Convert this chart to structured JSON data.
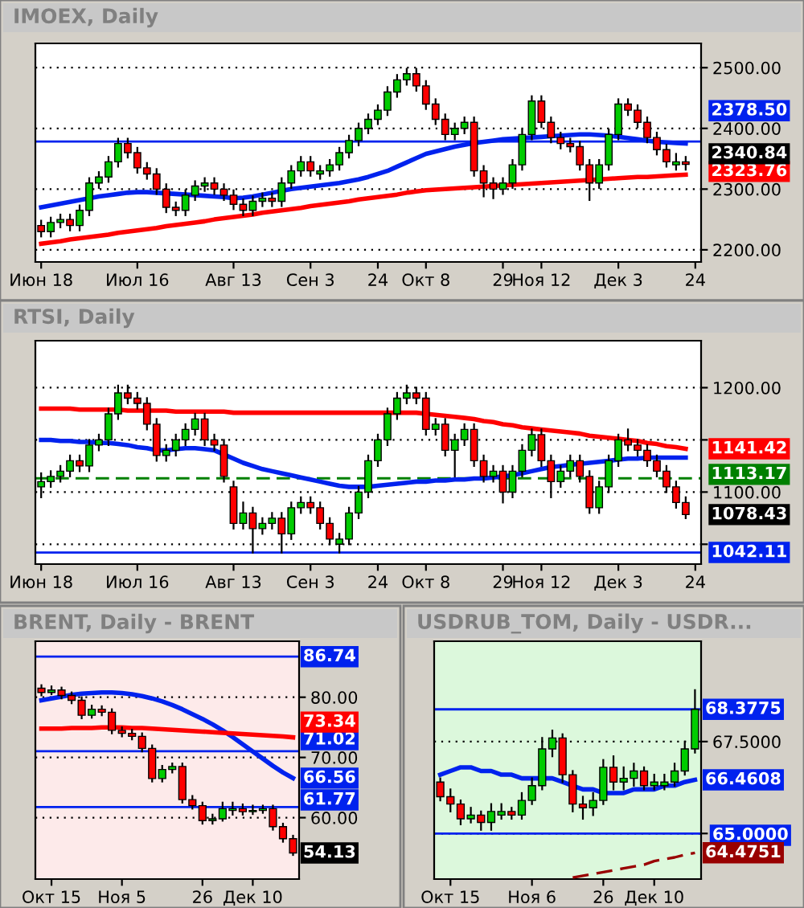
{
  "chart_data": [
    {
      "type": "candlestick",
      "title": "IMOEX, Daily",
      "grid": "y",
      "categories": [
        "Июн 18",
        null,
        null,
        null,
        null,
        null,
        null,
        null,
        null,
        null,
        "Июл 16",
        null,
        null,
        null,
        null,
        null,
        null,
        null,
        null,
        null,
        "Авг 13",
        null,
        null,
        null,
        null,
        null,
        null,
        null,
        "Сен 3",
        null,
        null,
        null,
        null,
        null,
        null,
        "24",
        null,
        null,
        null,
        null,
        "Окт 8",
        null,
        null,
        null,
        null,
        null,
        null,
        null,
        "29",
        null,
        null,
        null,
        "Ноя 12",
        null,
        null,
        null,
        null,
        null,
        null,
        null,
        "Дек 3",
        null,
        null,
        null,
        null,
        null,
        null,
        null,
        "24"
      ],
      "ohlc": [
        [
          2240,
          2248,
          2222,
          2230
        ],
        [
          2230,
          2253,
          2222,
          2245
        ],
        [
          2245,
          2258,
          2237,
          2250
        ],
        [
          2250,
          2258,
          2232,
          2240
        ],
        [
          2240,
          2273,
          2232,
          2265
        ],
        [
          2265,
          2318,
          2257,
          2310
        ],
        [
          2310,
          2328,
          2302,
          2320
        ],
        [
          2320,
          2353,
          2312,
          2345
        ],
        [
          2345,
          2383,
          2337,
          2375
        ],
        [
          2375,
          2383,
          2352,
          2360
        ],
        [
          2360,
          2368,
          2327,
          2335
        ],
        [
          2335,
          2343,
          2317,
          2325
        ],
        [
          2325,
          2333,
          2292,
          2300
        ],
        [
          2300,
          2308,
          2262,
          2270
        ],
        [
          2270,
          2278,
          2257,
          2265
        ],
        [
          2265,
          2298,
          2257,
          2290
        ],
        [
          2290,
          2313,
          2282,
          2305
        ],
        [
          2305,
          2318,
          2297,
          2310
        ],
        [
          2310,
          2318,
          2292,
          2300
        ],
        [
          2300,
          2308,
          2282,
          2290
        ],
        [
          2290,
          2298,
          2267,
          2275
        ],
        [
          2275,
          2283,
          2257,
          2265
        ],
        [
          2265,
          2288,
          2257,
          2280
        ],
        [
          2280,
          2293,
          2272,
          2285
        ],
        [
          2285,
          2293,
          2272,
          2280
        ],
        [
          2280,
          2318,
          2272,
          2310
        ],
        [
          2310,
          2338,
          2302,
          2330
        ],
        [
          2330,
          2353,
          2322,
          2345
        ],
        [
          2345,
          2353,
          2322,
          2330
        ],
        [
          2325,
          2338,
          2317,
          2330
        ],
        [
          2330,
          2348,
          2322,
          2340
        ],
        [
          2340,
          2368,
          2332,
          2360
        ],
        [
          2360,
          2388,
          2352,
          2380
        ],
        [
          2380,
          2408,
          2372,
          2400
        ],
        [
          2400,
          2423,
          2392,
          2415
        ],
        [
          2415,
          2438,
          2407,
          2430
        ],
        [
          2430,
          2468,
          2422,
          2460
        ],
        [
          2460,
          2488,
          2452,
          2480
        ],
        [
          2480,
          2498,
          2472,
          2490
        ],
        [
          2490,
          2498,
          2462,
          2470
        ],
        [
          2470,
          2478,
          2432,
          2440
        ],
        [
          2440,
          2448,
          2407,
          2415
        ],
        [
          2415,
          2423,
          2382,
          2390
        ],
        [
          2390,
          2408,
          2382,
          2400
        ],
        [
          2400,
          2418,
          2392,
          2410
        ],
        [
          2410,
          2418,
          2322,
          2330
        ],
        [
          2330,
          2338,
          2288,
          2310
        ],
        [
          2310,
          2318,
          2285,
          2300
        ],
        [
          2300,
          2318,
          2292,
          2310
        ],
        [
          2310,
          2348,
          2302,
          2340
        ],
        [
          2340,
          2398,
          2332,
          2390
        ],
        [
          2390,
          2453,
          2382,
          2445
        ],
        [
          2445,
          2453,
          2402,
          2410
        ],
        [
          2410,
          2418,
          2377,
          2385
        ],
        [
          2385,
          2393,
          2367,
          2375
        ],
        [
          2375,
          2383,
          2362,
          2370
        ],
        [
          2370,
          2378,
          2332,
          2340
        ],
        [
          2340,
          2348,
          2282,
          2310
        ],
        [
          2310,
          2348,
          2302,
          2340
        ],
        [
          2340,
          2398,
          2332,
          2390
        ],
        [
          2390,
          2448,
          2382,
          2440
        ],
        [
          2440,
          2448,
          2422,
          2430
        ],
        [
          2430,
          2438,
          2402,
          2410
        ],
        [
          2410,
          2418,
          2377,
          2385
        ],
        [
          2385,
          2393,
          2357,
          2365
        ],
        [
          2365,
          2373,
          2337,
          2345
        ],
        [
          2340,
          2358,
          2332,
          2345
        ],
        [
          2345,
          2353,
          2332,
          2340.84
        ],
        null
      ],
      "series": [
        {
          "type": "line",
          "color": "#0022ee",
          "values": [
            2270,
            2273,
            2276,
            2279,
            2282,
            2285,
            2288,
            2290,
            2292,
            2294,
            2295,
            2295,
            2294,
            2293,
            2292,
            2291,
            2290,
            2289,
            2288,
            2287,
            2285,
            2286,
            2288,
            2291,
            2294,
            2297,
            2300,
            2302,
            2304,
            2306,
            2308,
            2310,
            2313,
            2316,
            2320,
            2325,
            2330,
            2337,
            2344,
            2351,
            2358,
            2362,
            2366,
            2370,
            2373,
            2376,
            2378,
            2380,
            2382,
            2383,
            2384,
            2385,
            2386,
            2387,
            2388,
            2389,
            2390,
            2390,
            2389,
            2388,
            2386,
            2384,
            2382,
            2380,
            2378,
            2377,
            2376,
            2375,
            null
          ]
        },
        {
          "type": "line",
          "color": "#ff0000",
          "values": [
            2210,
            2212,
            2214,
            2217,
            2219,
            2221,
            2223,
            2225,
            2228,
            2230,
            2232,
            2234,
            2236,
            2239,
            2241,
            2243,
            2245,
            2247,
            2250,
            2252,
            2254,
            2256,
            2258,
            2261,
            2263,
            2265,
            2267,
            2269,
            2272,
            2274,
            2276,
            2278,
            2280,
            2283,
            2285,
            2287,
            2289,
            2291,
            2294,
            2296,
            2298,
            2299,
            2300,
            2301,
            2302,
            2303,
            2304,
            2305,
            2306,
            2307,
            2308,
            2309,
            2310,
            2311,
            2312,
            2313,
            2314,
            2315,
            2316,
            2317,
            2318,
            2319,
            2320,
            2320,
            2321,
            2322,
            2323,
            2323.76,
            null
          ],
          "value_labels": [
            null,
            null,
            null,
            null,
            null,
            null,
            null,
            null,
            null,
            null,
            null,
            null,
            null,
            null,
            null,
            null,
            null,
            null,
            null,
            null,
            null,
            null,
            null,
            null,
            null,
            null,
            null,
            null,
            null,
            null,
            null,
            null,
            null,
            null,
            null,
            null,
            null,
            null,
            null,
            null,
            null,
            null,
            null,
            null,
            null,
            null,
            null,
            null,
            null,
            null,
            null,
            null,
            null,
            null,
            null,
            null,
            null,
            null,
            null,
            null,
            null,
            null,
            null,
            null,
            null,
            null,
            null,
            "2323.76",
            null
          ]
        }
      ],
      "ylim": [
        2180,
        2540
      ],
      "yticks": [
        {
          "value": 2200,
          "label": "2200.00"
        },
        {
          "value": 2300,
          "label": "2300.00"
        },
        {
          "value": 2400,
          "label": "2400.00"
        },
        {
          "value": 2500,
          "label": "2500.00"
        }
      ],
      "ref_lines": [
        {
          "axis": "y",
          "value": 2378.5,
          "label": "2378.50",
          "color": "#0022ee"
        }
      ],
      "annotations": [
        "2340.84"
      ]
    },
    {
      "type": "candlestick",
      "title": "RTSI, Daily",
      "grid": "y",
      "categories": [
        "Июн 18",
        null,
        null,
        null,
        null,
        null,
        null,
        null,
        null,
        null,
        "Июл 16",
        null,
        null,
        null,
        null,
        null,
        null,
        null,
        null,
        null,
        "Авг 13",
        null,
        null,
        null,
        null,
        null,
        null,
        null,
        "Сен 3",
        null,
        null,
        null,
        null,
        null,
        null,
        "24",
        null,
        null,
        null,
        null,
        "Окт 8",
        null,
        null,
        null,
        null,
        null,
        null,
        null,
        "29",
        null,
        null,
        null,
        "Ноя 12",
        null,
        null,
        null,
        null,
        null,
        null,
        null,
        "Дек 3",
        null,
        null,
        null,
        null,
        null,
        null,
        null,
        "24"
      ],
      "ohlc": [
        [
          1105,
          1118,
          1095,
          1110
        ],
        [
          1110,
          1120,
          1105,
          1115
        ],
        [
          1115,
          1125,
          1110,
          1120
        ],
        [
          1120,
          1135,
          1115,
          1130
        ],
        [
          1130,
          1135,
          1120,
          1125
        ],
        [
          1125,
          1150,
          1120,
          1145
        ],
        [
          1145,
          1155,
          1140,
          1150
        ],
        [
          1150,
          1180,
          1145,
          1175
        ],
        [
          1175,
          1202,
          1170,
          1195
        ],
        [
          1195,
          1202,
          1185,
          1190
        ],
        [
          1190,
          1195,
          1180,
          1185
        ],
        [
          1185,
          1190,
          1160,
          1165
        ],
        [
          1165,
          1170,
          1130,
          1135
        ],
        [
          1135,
          1145,
          1130,
          1140
        ],
        [
          1140,
          1155,
          1135,
          1150
        ],
        [
          1150,
          1165,
          1145,
          1160
        ],
        [
          1160,
          1175,
          1155,
          1170
        ],
        [
          1170,
          1175,
          1145,
          1150
        ],
        [
          1150,
          1155,
          1140,
          1145
        ],
        [
          1145,
          1150,
          1110,
          1115
        ],
        [
          1105,
          1110,
          1065,
          1070
        ],
        [
          1070,
          1090,
          1065,
          1080
        ],
        [
          1080,
          1085,
          1042,
          1065
        ],
        [
          1065,
          1075,
          1060,
          1070
        ],
        [
          1070,
          1080,
          1065,
          1075
        ],
        [
          1075,
          1080,
          1042,
          1060
        ],
        [
          1060,
          1090,
          1055,
          1085
        ],
        [
          1085,
          1095,
          1080,
          1090
        ],
        [
          1090,
          1095,
          1080,
          1085
        ],
        [
          1085,
          1090,
          1065,
          1070
        ],
        [
          1070,
          1075,
          1050,
          1055
        ],
        [
          1050,
          1060,
          1042,
          1055
        ],
        [
          1055,
          1085,
          1050,
          1080
        ],
        [
          1080,
          1105,
          1075,
          1100
        ],
        [
          1100,
          1135,
          1095,
          1130
        ],
        [
          1130,
          1155,
          1125,
          1150
        ],
        [
          1150,
          1180,
          1145,
          1175
        ],
        [
          1175,
          1195,
          1170,
          1190
        ],
        [
          1190,
          1202,
          1185,
          1195
        ],
        [
          1195,
          1200,
          1185,
          1190
        ],
        [
          1190,
          1195,
          1155,
          1160
        ],
        [
          1160,
          1170,
          1155,
          1165
        ],
        [
          1165,
          1170,
          1135,
          1140
        ],
        [
          1140,
          1155,
          1115,
          1150
        ],
        [
          1150,
          1165,
          1145,
          1160
        ],
        [
          1160,
          1165,
          1125,
          1130
        ],
        [
          1130,
          1135,
          1110,
          1115
        ],
        [
          1115,
          1125,
          1110,
          1120
        ],
        [
          1120,
          1125,
          1090,
          1100
        ],
        [
          1100,
          1125,
          1095,
          1120
        ],
        [
          1120,
          1145,
          1115,
          1140
        ],
        [
          1140,
          1160,
          1135,
          1155
        ],
        [
          1155,
          1160,
          1125,
          1130
        ],
        [
          1130,
          1135,
          1095,
          1110
        ],
        [
          1110,
          1125,
          1105,
          1120
        ],
        [
          1120,
          1135,
          1115,
          1130
        ],
        [
          1130,
          1135,
          1110,
          1115
        ],
        [
          1115,
          1120,
          1080,
          1085
        ],
        [
          1085,
          1110,
          1080,
          1105
        ],
        [
          1105,
          1135,
          1100,
          1130
        ],
        [
          1130,
          1155,
          1125,
          1150
        ],
        [
          1150,
          1160,
          1140,
          1145
        ],
        [
          1145,
          1150,
          1135,
          1140
        ],
        [
          1140,
          1145,
          1125,
          1130
        ],
        [
          1130,
          1135,
          1115,
          1120
        ],
        [
          1120,
          1125,
          1100,
          1105
        ],
        [
          1105,
          1110,
          1085,
          1090
        ],
        [
          1090,
          1095,
          1075,
          1078.43
        ],
        null
      ],
      "series": [
        {
          "type": "line",
          "color": "#ff0000",
          "values": [
            1180,
            1180,
            1180,
            1180,
            1179,
            1179,
            1179,
            1179,
            1179,
            1178,
            1178,
            1178,
            1178,
            1178,
            1177,
            1177,
            1177,
            1177,
            1177,
            1177,
            1176,
            1176,
            1176,
            1176,
            1176,
            1176,
            1176,
            1176,
            1176,
            1176,
            1176,
            1176,
            1176,
            1176,
            1176,
            1176,
            1176,
            1176,
            1176,
            1176,
            1175,
            1174,
            1173,
            1172,
            1171,
            1170,
            1168,
            1167,
            1165,
            1164,
            1162,
            1161,
            1160,
            1159,
            1158,
            1157,
            1156,
            1154,
            1153,
            1152,
            1151,
            1150,
            1149,
            1147,
            1146,
            1144,
            1143,
            1141.42,
            null
          ],
          "value_labels": [
            null,
            null,
            null,
            null,
            null,
            null,
            null,
            null,
            null,
            null,
            null,
            null,
            null,
            null,
            null,
            null,
            null,
            null,
            null,
            null,
            null,
            null,
            null,
            null,
            null,
            null,
            null,
            null,
            null,
            null,
            null,
            null,
            null,
            null,
            null,
            null,
            null,
            null,
            null,
            null,
            null,
            null,
            null,
            null,
            null,
            null,
            null,
            null,
            null,
            null,
            null,
            null,
            null,
            null,
            null,
            null,
            null,
            null,
            null,
            null,
            null,
            null,
            null,
            null,
            null,
            null,
            null,
            "1141.42",
            null
          ]
        },
        {
          "type": "line",
          "color": "#0022ee",
          "values": [
            1150,
            1150,
            1149,
            1149,
            1148,
            1148,
            1147,
            1147,
            1146,
            1145,
            1143,
            1142,
            1140,
            1140,
            1141,
            1142,
            1142,
            1141,
            1140,
            1136,
            1132,
            1128,
            1125,
            1122,
            1120,
            1118,
            1116,
            1114,
            1112,
            1110,
            1108,
            1106,
            1105,
            1105,
            1105,
            1106,
            1107,
            1108,
            1109,
            1110,
            1110,
            1111,
            1111,
            1112,
            1112,
            1113,
            1113,
            1114,
            1115,
            1116,
            1118,
            1120,
            1122,
            1124,
            1125,
            1126,
            1127,
            1128,
            1129,
            1130,
            1131,
            1132,
            1132,
            1133,
            1133,
            1133,
            1133,
            1133,
            null
          ]
        }
      ],
      "ylim": [
        1031,
        1245
      ],
      "yticks": [
        {
          "value": 1050,
          "label": null
        },
        {
          "value": 1100,
          "label": "1100.00"
        },
        {
          "value": 1150,
          "label": null
        },
        {
          "value": 1200,
          "label": "1200.00"
        }
      ],
      "ref_lines": [
        {
          "axis": "y",
          "value": 1042.11,
          "label": "1042.11",
          "color": "#0022ee"
        },
        {
          "axis": "y",
          "value": 1113.17,
          "label": "1113.17",
          "color": "#008000",
          "line_style": "dashed"
        }
      ],
      "annotations": [
        "1078.43"
      ]
    },
    {
      "type": "candlestick",
      "title": "BRENT, Daily - BRENT",
      "grid": "y",
      "categories": [
        null,
        "Окт 15",
        null,
        null,
        null,
        null,
        null,
        null,
        "Ноя 5",
        null,
        null,
        null,
        null,
        null,
        null,
        null,
        "26",
        null,
        null,
        null,
        null,
        "Дек 10",
        null,
        null,
        null,
        null
      ],
      "ohlc": [
        [
          81.5,
          82.0,
          80.3,
          80.8
        ],
        [
          80.8,
          81.8,
          80.5,
          81.2
        ],
        [
          81.2,
          81.6,
          79.8,
          80.3
        ],
        [
          80.3,
          80.8,
          79.0,
          79.5
        ],
        [
          79.5,
          80.0,
          76.5,
          77.0
        ],
        [
          77.0,
          78.6,
          76.6,
          78.0
        ],
        [
          78.0,
          78.5,
          77.0,
          77.5
        ],
        [
          77.5,
          78.0,
          74.0,
          74.5
        ],
        [
          74.5,
          75.0,
          73.5,
          74.0
        ],
        [
          74.0,
          74.6,
          73.0,
          73.5
        ],
        [
          73.5,
          74.0,
          71.0,
          71.5
        ],
        [
          71.5,
          72.0,
          66.0,
          66.5
        ],
        [
          66.5,
          68.6,
          66.0,
          68.0
        ],
        [
          68.0,
          69.0,
          67.5,
          68.5
        ],
        [
          68.5,
          69.0,
          62.5,
          63.0
        ],
        [
          63.0,
          63.6,
          61.5,
          62.0
        ],
        [
          62.0,
          62.5,
          59.0,
          59.5
        ],
        [
          59.5,
          60.5,
          59.0,
          59.8
        ],
        [
          59.8,
          62.5,
          59.5,
          61.5
        ],
        [
          61.2,
          62.5,
          60.5,
          61.5
        ],
        [
          61.5,
          62.2,
          60.5,
          61.0
        ],
        [
          61.0,
          62.0,
          60.6,
          61.2
        ],
        [
          61.2,
          62.0,
          60.8,
          61.5
        ],
        [
          61.5,
          62.0,
          58.0,
          58.5
        ],
        [
          58.5,
          59.0,
          56.0,
          56.5
        ],
        [
          56.5,
          57.0,
          53.8,
          54.13
        ]
      ],
      "series": [
        {
          "type": "line",
          "color": "#0022ee",
          "values": [
            79.5,
            79.8,
            80.1,
            80.4,
            80.6,
            80.7,
            80.8,
            80.8,
            80.7,
            80.5,
            80.2,
            79.8,
            79.3,
            78.7,
            78.0,
            77.2,
            76.4,
            75.5,
            74.5,
            73.4,
            72.2,
            71.0,
            69.8,
            68.6,
            67.5,
            66.56
          ],
          "value_labels": [
            null,
            null,
            null,
            null,
            null,
            null,
            null,
            null,
            null,
            null,
            null,
            null,
            null,
            null,
            null,
            null,
            null,
            null,
            null,
            null,
            null,
            null,
            null,
            null,
            null,
            "66.56"
          ]
        },
        {
          "type": "line",
          "color": "#ff0000",
          "values": [
            74.8,
            74.8,
            74.8,
            74.9,
            74.9,
            74.9,
            75.0,
            75.0,
            75.0,
            74.9,
            74.9,
            74.8,
            74.7,
            74.6,
            74.5,
            74.4,
            74.3,
            74.2,
            74.1,
            74.0,
            73.9,
            73.8,
            73.7,
            73.6,
            73.5,
            73.34
          ],
          "value_labels": [
            null,
            null,
            null,
            null,
            null,
            null,
            null,
            null,
            null,
            null,
            null,
            null,
            null,
            null,
            null,
            null,
            null,
            null,
            null,
            null,
            null,
            null,
            null,
            null,
            null,
            "73.34"
          ]
        }
      ],
      "ylim": [
        49.8,
        89.3
      ],
      "yticks": [
        {
          "value": 60,
          "label": "60.00"
        },
        {
          "value": 70,
          "label": "70.00"
        },
        {
          "value": 80,
          "label": "80.00"
        }
      ],
      "ref_lines": [
        {
          "axis": "y",
          "value": 86.74,
          "label": "86.74",
          "color": "#0022ee"
        },
        {
          "axis": "y",
          "value": 71.02,
          "label": "71.02",
          "color": "#0022ee"
        },
        {
          "axis": "y",
          "value": 61.77,
          "label": "61.77",
          "color": "#0022ee"
        }
      ],
      "annotations": [
        "54.13"
      ]
    },
    {
      "type": "candlestick",
      "title": "USDRUB_TOM, Daily - USDR...",
      "grid": "y",
      "categories": [
        null,
        "Окт 15",
        null,
        null,
        null,
        null,
        null,
        null,
        null,
        "Ноя 6",
        null,
        null,
        null,
        null,
        null,
        null,
        "26",
        null,
        null,
        null,
        null,
        "Дек 10",
        null,
        null,
        null,
        null
      ],
      "ohlc": [
        [
          66.4,
          66.5,
          65.9,
          66.0
        ],
        [
          66.0,
          66.2,
          65.6,
          65.8
        ],
        [
          65.8,
          65.9,
          65.25,
          65.4
        ],
        [
          65.4,
          65.7,
          65.3,
          65.5
        ],
        [
          65.5,
          65.6,
          65.1,
          65.3
        ],
        [
          65.3,
          65.8,
          65.1,
          65.6
        ],
        [
          65.5,
          65.8,
          65.4,
          65.6
        ],
        [
          65.6,
          65.7,
          65.4,
          65.5
        ],
        [
          65.5,
          66.1,
          65.4,
          65.9
        ],
        [
          65.9,
          66.5,
          65.8,
          66.3
        ],
        [
          66.3,
          67.6,
          66.2,
          67.3
        ],
        [
          67.3,
          67.8,
          67.1,
          67.6
        ],
        [
          67.6,
          67.7,
          66.4,
          66.6
        ],
        [
          66.6,
          66.7,
          65.6,
          65.8
        ],
        [
          65.8,
          66.0,
          65.4,
          65.7
        ],
        [
          65.7,
          66.1,
          65.5,
          65.9
        ],
        [
          65.9,
          67.0,
          65.8,
          66.8
        ],
        [
          66.8,
          67.1,
          66.2,
          66.4
        ],
        [
          66.4,
          66.8,
          66.2,
          66.5
        ],
        [
          66.5,
          66.9,
          66.3,
          66.7
        ],
        [
          66.7,
          66.8,
          66.2,
          66.3
        ],
        [
          66.3,
          66.6,
          66.2,
          66.4
        ],
        [
          66.3,
          66.6,
          66.2,
          66.4
        ],
        [
          66.4,
          66.9,
          66.3,
          66.7
        ],
        [
          66.7,
          67.5,
          66.6,
          67.3
        ],
        [
          67.3,
          68.9,
          67.2,
          68.3775
        ]
      ],
      "series": [
        {
          "type": "line",
          "color": "#0022ee",
          "values": [
            66.6,
            66.7,
            66.8,
            66.8,
            66.7,
            66.7,
            66.6,
            66.6,
            66.5,
            66.5,
            66.5,
            66.5,
            66.4,
            66.3,
            66.2,
            66.2,
            66.1,
            66.1,
            66.1,
            66.2,
            66.2,
            66.2,
            66.3,
            66.3,
            66.4,
            66.4608
          ],
          "value_labels": [
            null,
            null,
            null,
            null,
            null,
            null,
            null,
            null,
            null,
            null,
            null,
            null,
            null,
            null,
            null,
            null,
            null,
            null,
            null,
            null,
            null,
            null,
            null,
            null,
            null,
            "66.4608"
          ]
        },
        {
          "type": "line",
          "color": "#990000",
          "line_style": "dashed",
          "values": [
            null,
            null,
            null,
            null,
            null,
            null,
            null,
            null,
            null,
            null,
            null,
            null,
            null,
            63.8,
            63.85,
            63.9,
            63.95,
            64.0,
            64.05,
            64.1,
            64.15,
            64.25,
            64.3,
            64.35,
            64.42,
            64.4751
          ],
          "value_labels": [
            null,
            null,
            null,
            null,
            null,
            null,
            null,
            null,
            null,
            null,
            null,
            null,
            null,
            null,
            null,
            null,
            null,
            null,
            null,
            null,
            null,
            null,
            null,
            null,
            null,
            "64.4751"
          ]
        }
      ],
      "ylim": [
        63.76,
        70.23
      ],
      "yticks": [
        {
          "value": 65,
          "label": "65.0000"
        },
        {
          "value": 67.5,
          "label": "67.5000"
        }
      ],
      "ref_lines": [
        {
          "axis": "y",
          "value": 68.3775,
          "label": "68.3775",
          "color": "#0022ee"
        },
        {
          "axis": "y",
          "value": 65.0,
          "color": "#0022ee"
        }
      ]
    }
  ]
}
